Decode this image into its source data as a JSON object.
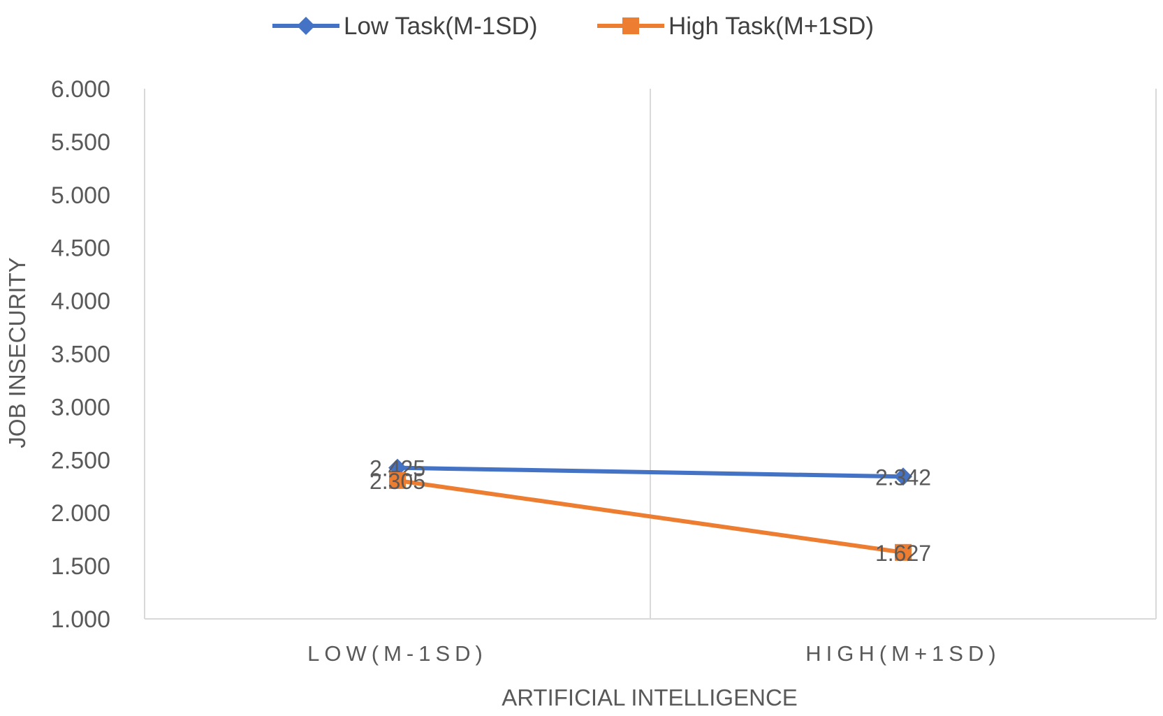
{
  "chart_data": {
    "type": "line",
    "title": "",
    "xlabel": "ARTIFICIAL INTELLIGENCE",
    "ylabel": "JOB INSECURITY",
    "categories": [
      "LOW(M-1SD)",
      "HIGH(M+1SD)"
    ],
    "ylim": [
      1.0,
      6.0
    ],
    "yticks": [
      "1.000",
      "1.500",
      "2.000",
      "2.500",
      "3.000",
      "3.500",
      "4.000",
      "4.500",
      "5.000",
      "5.500",
      "6.000"
    ],
    "grid": "vertical separator between categories",
    "legend_position": "top",
    "series": [
      {
        "name": "Low Task(M-1SD)",
        "values": [
          2.425,
          2.342
        ],
        "labels": [
          "2.425",
          "2.342"
        ],
        "color": "#4472C4",
        "marker": "diamond"
      },
      {
        "name": "High Task(M+1SD)",
        "values": [
          2.305,
          1.627
        ],
        "labels": [
          "2.305",
          "1.627"
        ],
        "color": "#ED7D31",
        "marker": "square"
      }
    ]
  }
}
